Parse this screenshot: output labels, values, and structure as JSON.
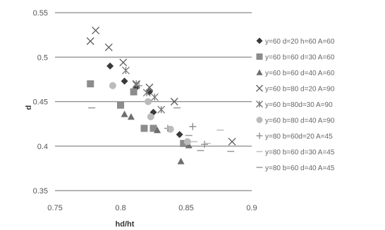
{
  "chart_data": {
    "type": "scatter",
    "xlabel": "hd/ht",
    "ylabel": "d",
    "xlim": [
      0.75,
      0.9
    ],
    "ylim": [
      0.35,
      0.55
    ],
    "x_ticks": [
      "0.75",
      "0.8",
      "0.85",
      "0.9"
    ],
    "y_ticks": [
      "0.35",
      "0.4",
      "0.45",
      "0.5",
      "0.55"
    ],
    "grid": "horizontal",
    "legend_position": "right",
    "series": [
      {
        "name": "y=60 d=20 h=60 A=60",
        "marker": "diamond",
        "color": "#3a3a3a",
        "points": [
          [
            0.792,
            0.49
          ],
          [
            0.803,
            0.473
          ],
          [
            0.812,
            0.466
          ],
          [
            0.822,
            0.461
          ],
          [
            0.825,
            0.438
          ],
          [
            0.845,
            0.413
          ]
        ]
      },
      {
        "name": "y=60 b=60 d=30 A=60",
        "marker": "square",
        "color": "#8c8c8c",
        "points": [
          [
            0.777,
            0.47
          ],
          [
            0.8,
            0.446
          ],
          [
            0.81,
            0.461
          ],
          [
            0.818,
            0.42
          ],
          [
            0.825,
            0.42
          ],
          [
            0.848,
            0.403
          ]
        ]
      },
      {
        "name": "y=60 b=60 d=40 A=60",
        "marker": "triangle",
        "color": "#6e6e6e",
        "points": [
          [
            0.803,
            0.436
          ],
          [
            0.808,
            0.433
          ],
          [
            0.828,
            0.418
          ],
          [
            0.846,
            0.383
          ],
          [
            0.852,
            0.401
          ]
        ]
      },
      {
        "name": "y=60 b=80 d=20 A=90",
        "marker": "x",
        "color": "#5a5a5a",
        "points": [
          [
            0.777,
            0.518
          ],
          [
            0.781,
            0.53
          ],
          [
            0.791,
            0.511
          ],
          [
            0.802,
            0.494
          ],
          [
            0.812,
            0.469
          ],
          [
            0.822,
            0.466
          ],
          [
            0.841,
            0.45
          ],
          [
            0.885,
            0.405
          ]
        ]
      },
      {
        "name": "y=60 b=80d=30 A=90",
        "marker": "asterisk",
        "color": "#777777",
        "points": [
          [
            0.804,
            0.485
          ],
          [
            0.812,
            0.47
          ],
          [
            0.82,
            0.46
          ],
          [
            0.826,
            0.455
          ],
          [
            0.831,
            0.441
          ]
        ]
      },
      {
        "name": "y=60 b=80 d=40 A=90",
        "marker": "circle",
        "color": "#bbbbbb",
        "points": [
          [
            0.794,
            0.468
          ],
          [
            0.821,
            0.45
          ],
          [
            0.823,
            0.433
          ],
          [
            0.838,
            0.419
          ],
          [
            0.851,
            0.405
          ]
        ]
      },
      {
        "name": "y=80 b=60d=20 A=45",
        "marker": "plus",
        "color": "#888888",
        "points": [
          [
            0.814,
            0.468
          ],
          [
            0.836,
            0.42
          ],
          [
            0.855,
            0.422
          ],
          [
            0.864,
            0.402
          ]
        ]
      },
      {
        "name": "y=80 b=60 d=30 A=45",
        "marker": "dash",
        "color": "#bfbfbf",
        "points": [
          [
            0.838,
            0.42
          ],
          [
            0.856,
            0.405
          ],
          [
            0.866,
            0.403
          ],
          [
            0.876,
            0.418
          ]
        ]
      },
      {
        "name": "y=80 b=60 d=40 A=45",
        "marker": "dash",
        "color": "#9a9a9a",
        "points": [
          [
            0.778,
            0.443
          ],
          [
            0.843,
            0.443
          ],
          [
            0.852,
            0.412
          ],
          [
            0.861,
            0.395
          ],
          [
            0.884,
            0.394
          ]
        ]
      }
    ]
  }
}
